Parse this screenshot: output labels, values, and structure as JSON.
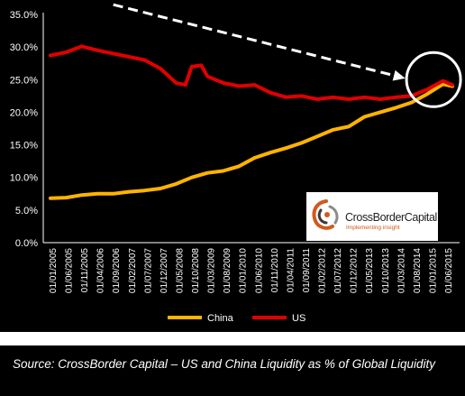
{
  "logo": {
    "name": "CrossBorderCapital",
    "tagline": "Implementing insight"
  },
  "caption": "Source: CrossBorder Capital – US and China Liquidity as % of Global Liquidity",
  "colors": {
    "background": "#000000",
    "text": "#ffffff",
    "china": "#ffb400",
    "us": "#e00000",
    "arrow": "#ffffff",
    "logo_accent": "#d05a1f"
  },
  "chart_data": {
    "type": "line",
    "title": "",
    "xlabel": "",
    "ylabel": "",
    "ylim": [
      0,
      35
    ],
    "y_ticks": [
      "0.0%",
      "5.0%",
      "10.0%",
      "15.0%",
      "20.0%",
      "25.0%",
      "30.0%",
      "35.0%"
    ],
    "y_tick_values": [
      0,
      5,
      10,
      15,
      20,
      25,
      30,
      35
    ],
    "x_tick_labels": [
      "01/01/2005",
      "01/06/2005",
      "01/11/2005",
      "01/04/2006",
      "01/09/2006",
      "01/02/2007",
      "01/07/2007",
      "01/12/2007",
      "01/05/2008",
      "01/10/2008",
      "01/03/2009",
      "01/08/2009",
      "01/01/2010",
      "01/06/2010",
      "01/11/2010",
      "01/04/2011",
      "01/09/2011",
      "01/02/2012",
      "01/07/2012",
      "01/12/2012",
      "01/05/2013",
      "01/10/2013",
      "01/03/2014",
      "01/08/2014",
      "01/01/2015",
      "01/06/2015"
    ],
    "x_range": [
      "2005-01",
      "2015-09"
    ],
    "grid": false,
    "legend": "bottom-center",
    "series": [
      {
        "name": "China",
        "points": [
          [
            "2005-01",
            6.8
          ],
          [
            "2005-06",
            6.9
          ],
          [
            "2005-11",
            7.3
          ],
          [
            "2006-04",
            7.5
          ],
          [
            "2006-09",
            7.5
          ],
          [
            "2007-02",
            7.8
          ],
          [
            "2007-07",
            8.0
          ],
          [
            "2007-12",
            8.3
          ],
          [
            "2008-05",
            9.0
          ],
          [
            "2008-10",
            10.0
          ],
          [
            "2009-03",
            10.7
          ],
          [
            "2009-08",
            11.0
          ],
          [
            "2010-01",
            11.7
          ],
          [
            "2010-06",
            13.0
          ],
          [
            "2010-11",
            13.8
          ],
          [
            "2011-04",
            14.5
          ],
          [
            "2011-09",
            15.3
          ],
          [
            "2012-02",
            16.3
          ],
          [
            "2012-07",
            17.3
          ],
          [
            "2012-12",
            17.8
          ],
          [
            "2013-05",
            19.3
          ],
          [
            "2013-10",
            20.0
          ],
          [
            "2014-03",
            20.7
          ],
          [
            "2014-08",
            21.5
          ],
          [
            "2015-01",
            22.8
          ],
          [
            "2015-06",
            24.3
          ],
          [
            "2015-09",
            24.0
          ]
        ]
      },
      {
        "name": "US",
        "points": [
          [
            "2005-01",
            28.7
          ],
          [
            "2005-06",
            29.2
          ],
          [
            "2005-11",
            30.1
          ],
          [
            "2006-04",
            29.5
          ],
          [
            "2006-09",
            29.0
          ],
          [
            "2007-02",
            28.5
          ],
          [
            "2007-07",
            28.0
          ],
          [
            "2007-12",
            26.7
          ],
          [
            "2008-05",
            24.5
          ],
          [
            "2008-08",
            24.2
          ],
          [
            "2008-10",
            27.0
          ],
          [
            "2009-01",
            27.2
          ],
          [
            "2009-03",
            25.5
          ],
          [
            "2009-08",
            24.5
          ],
          [
            "2010-01",
            24.0
          ],
          [
            "2010-06",
            24.2
          ],
          [
            "2010-11",
            23.0
          ],
          [
            "2011-04",
            22.3
          ],
          [
            "2011-09",
            22.5
          ],
          [
            "2012-02",
            22.0
          ],
          [
            "2012-07",
            22.3
          ],
          [
            "2012-12",
            22.0
          ],
          [
            "2013-05",
            22.3
          ],
          [
            "2013-10",
            22.0
          ],
          [
            "2014-03",
            22.3
          ],
          [
            "2014-08",
            22.5
          ],
          [
            "2015-01",
            23.5
          ],
          [
            "2015-06",
            24.8
          ],
          [
            "2015-09",
            24.2
          ]
        ]
      }
    ],
    "annotations": [
      {
        "type": "dashed-arrow",
        "from": [
          "2006-09",
          36.5
        ],
        "to": [
          "2014-06",
          25.2
        ]
      },
      {
        "type": "circle",
        "center": [
          "2015-03",
          25.0
        ]
      }
    ]
  }
}
